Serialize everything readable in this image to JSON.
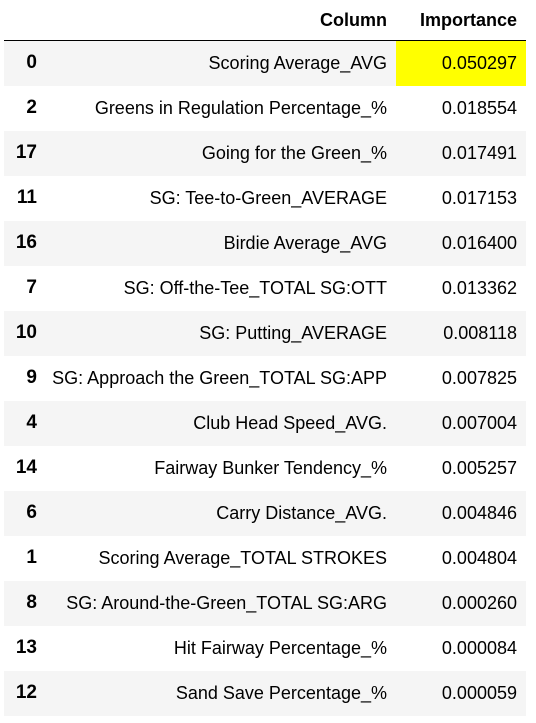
{
  "table": {
    "headers": {
      "index": "",
      "column": "Column",
      "importance": "Importance"
    },
    "highlight_color": "#ffff00",
    "rows": [
      {
        "index": "0",
        "column": "Scoring Average_AVG",
        "importance": "0.050297",
        "highlight": true
      },
      {
        "index": "2",
        "column": "Greens in Regulation Percentage_%",
        "importance": "0.018554",
        "highlight": false
      },
      {
        "index": "17",
        "column": "Going for the Green_%",
        "importance": "0.017491",
        "highlight": false
      },
      {
        "index": "11",
        "column": "SG: Tee-to-Green_AVERAGE",
        "importance": "0.017153",
        "highlight": false
      },
      {
        "index": "16",
        "column": "Birdie Average_AVG",
        "importance": "0.016400",
        "highlight": false
      },
      {
        "index": "7",
        "column": "SG: Off-the-Tee_TOTAL SG:OTT",
        "importance": "0.013362",
        "highlight": false
      },
      {
        "index": "10",
        "column": "SG: Putting_AVERAGE",
        "importance": "0.008118",
        "highlight": false
      },
      {
        "index": "9",
        "column": "SG: Approach the Green_TOTAL SG:APP",
        "importance": "0.007825",
        "highlight": false
      },
      {
        "index": "4",
        "column": "Club Head Speed_AVG.",
        "importance": "0.007004",
        "highlight": false
      },
      {
        "index": "14",
        "column": "Fairway Bunker Tendency_%",
        "importance": "0.005257",
        "highlight": false
      },
      {
        "index": "6",
        "column": "Carry Distance_AVG.",
        "importance": "0.004846",
        "highlight": false
      },
      {
        "index": "1",
        "column": "Scoring Average_TOTAL STROKES",
        "importance": "0.004804",
        "highlight": false
      },
      {
        "index": "8",
        "column": "SG: Around-the-Green_TOTAL SG:ARG",
        "importance": "0.000260",
        "highlight": false
      },
      {
        "index": "13",
        "column": "Hit Fairway Percentage_%",
        "importance": "0.000084",
        "highlight": false
      },
      {
        "index": "12",
        "column": "Sand Save Percentage_%",
        "importance": "0.000059",
        "highlight": false
      }
    ]
  }
}
